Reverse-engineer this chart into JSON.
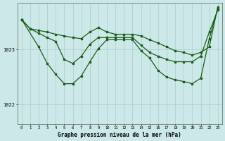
{
  "background_color": "#cce8e8",
  "grid_color": "#aacccc",
  "line_color": "#1a5c1a",
  "title": "Graphe pression niveau de la mer (hPa)",
  "ylabel_ticks": [
    1022,
    1023
  ],
  "xlim": [
    -0.5,
    23.5
  ],
  "ylim": [
    1021.65,
    1023.85
  ],
  "line1_x": [
    0,
    1,
    2,
    3,
    4,
    5,
    6,
    7,
    8,
    9,
    10,
    11,
    12,
    13,
    14,
    15,
    16,
    17,
    18,
    19,
    20,
    21,
    22,
    23
  ],
  "line1_y": [
    1023.55,
    1023.38,
    1023.35,
    1023.32,
    1023.28,
    1023.25,
    1023.22,
    1023.2,
    1023.32,
    1023.4,
    1023.32,
    1023.28,
    1023.28,
    1023.28,
    1023.25,
    1023.18,
    1023.12,
    1023.05,
    1022.98,
    1022.95,
    1022.9,
    1022.95,
    1023.05,
    1023.78
  ],
  "line2_x": [
    0,
    1,
    2,
    3,
    4,
    5,
    6,
    7,
    8,
    9,
    10,
    11,
    12,
    13,
    14,
    15,
    16,
    17,
    18,
    19,
    20,
    21,
    22,
    23
  ],
  "line2_y": [
    1023.55,
    1023.38,
    1023.3,
    1023.22,
    1023.15,
    1022.82,
    1022.75,
    1022.88,
    1023.1,
    1023.22,
    1023.22,
    1023.22,
    1023.22,
    1023.22,
    1023.08,
    1022.95,
    1022.88,
    1022.82,
    1022.78,
    1022.78,
    1022.78,
    1022.88,
    1023.32,
    1023.72
  ],
  "line3_x": [
    0,
    2,
    3,
    4,
    5,
    6,
    7,
    8,
    9,
    10,
    11,
    12,
    13,
    14,
    15,
    16,
    17,
    18,
    19,
    20,
    21,
    22,
    23
  ],
  "line3_y": [
    1023.55,
    1023.05,
    1022.75,
    1022.55,
    1022.38,
    1022.38,
    1022.52,
    1022.78,
    1023.02,
    1023.18,
    1023.18,
    1023.18,
    1023.18,
    1022.98,
    1022.85,
    1022.62,
    1022.5,
    1022.45,
    1022.42,
    1022.38,
    1022.48,
    1023.2,
    1023.75
  ]
}
